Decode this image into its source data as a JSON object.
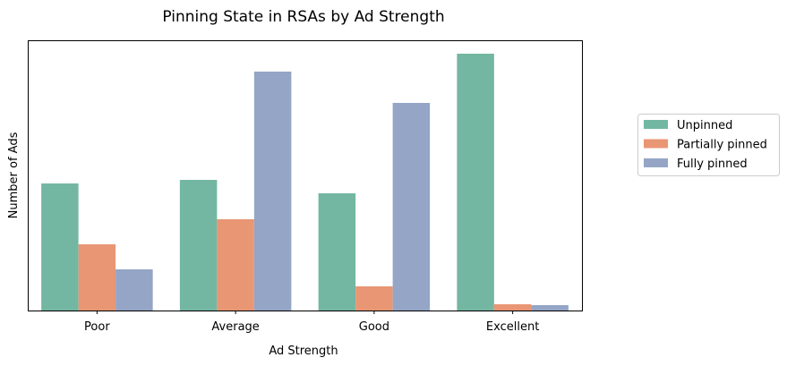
{
  "chart_data": {
    "type": "bar",
    "title": "Pinning State in RSAs by Ad Strength",
    "xlabel": "Ad Strength",
    "ylabel": "Number of Ads",
    "categories": [
      "Poor",
      "Average",
      "Good",
      "Excellent"
    ],
    "series": [
      {
        "name": "Unpinned",
        "color": "#73b7a2",
        "values": [
          142,
          146,
          131,
          287
        ]
      },
      {
        "name": "Partially pinned",
        "color": "#e99675",
        "values": [
          74,
          102,
          27,
          7
        ]
      },
      {
        "name": "Fully pinned",
        "color": "#94a5c6",
        "values": [
          46,
          267,
          232,
          6
        ]
      }
    ],
    "ylim": [
      0,
      302
    ],
    "y_ticks_shown": false,
    "grid": false,
    "legend_position": "right"
  }
}
